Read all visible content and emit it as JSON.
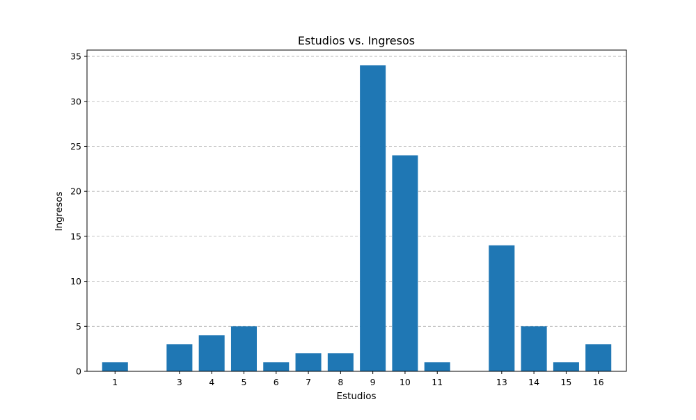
{
  "chart_data": {
    "type": "bar",
    "title": "Estudios vs. Ingresos",
    "xlabel": "Estudios",
    "ylabel": "Ingresos",
    "x": [
      1,
      3,
      4,
      5,
      6,
      7,
      8,
      9,
      10,
      11,
      13,
      14,
      15,
      16
    ],
    "values": [
      1,
      3,
      4,
      5,
      1,
      2,
      2,
      34,
      24,
      1,
      14,
      5,
      1,
      3
    ],
    "xtick_labels": [
      "1",
      "3",
      "4",
      "5",
      "6",
      "7",
      "8",
      "9",
      "10",
      "11",
      "13",
      "14",
      "15",
      "16"
    ],
    "yticks": [
      0,
      5,
      10,
      15,
      20,
      25,
      30,
      35
    ],
    "xlim": [
      0.13,
      16.87
    ],
    "ylim": [
      0,
      35.7
    ],
    "bar_color": "#1f77b4",
    "grid": "horizontal dashed",
    "legend": "none"
  }
}
